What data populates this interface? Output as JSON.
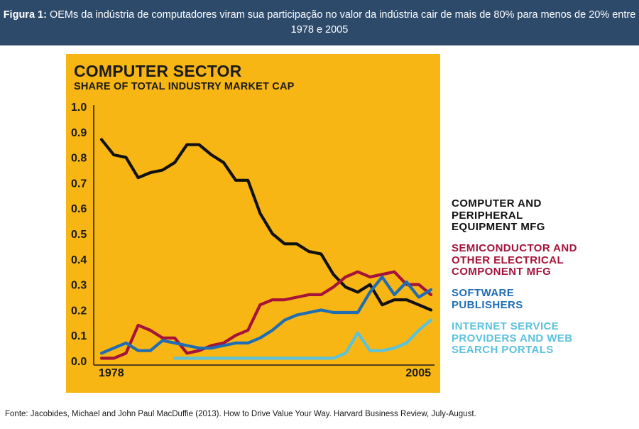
{
  "header": {
    "label": "Figura 1:",
    "text": "OEMs da indústria de computadores viram sua participação no valor da indústria cair de mais de 80% para menos de 20% entre 1978 e 2005"
  },
  "footer": {
    "text": "Fonte: Jacobides, Michael and John Paul MacDuffie (2013). How to Drive Value Your Way. Harvard Business Review, July-August."
  },
  "chart_data": {
    "type": "line",
    "title": "COMPUTER SECTOR",
    "subtitle": "SHARE OF TOTAL INDUSTRY MARKET CAP",
    "xlabel": "",
    "ylabel": "",
    "xlim": [
      1978,
      2005
    ],
    "ylim": [
      0,
      1.0
    ],
    "x_tick_labels": [
      "1978",
      "2005"
    ],
    "y_tick_labels": [
      "0.0",
      "0.1",
      "0.2",
      "0.3",
      "0.4",
      "0.5",
      "0.6",
      "0.7",
      "0.8",
      "0.9",
      "1.0"
    ],
    "x": [
      1978,
      1979,
      1980,
      1981,
      1982,
      1983,
      1984,
      1985,
      1986,
      1987,
      1988,
      1989,
      1990,
      1991,
      1992,
      1993,
      1994,
      1995,
      1996,
      1997,
      1998,
      1999,
      2000,
      2001,
      2002,
      2003,
      2004,
      2005
    ],
    "series": [
      {
        "name": "COMPUTER AND PERIPHERAL EQUIPMENT MFG",
        "color": "#111111",
        "values": [
          0.87,
          0.81,
          0.8,
          0.72,
          0.74,
          0.75,
          0.78,
          0.85,
          0.85,
          0.81,
          0.78,
          0.71,
          0.71,
          0.58,
          0.5,
          0.46,
          0.46,
          0.43,
          0.42,
          0.34,
          0.29,
          0.27,
          0.3,
          0.22,
          0.24,
          0.24,
          0.22,
          0.2
        ]
      },
      {
        "name": "SEMICONDUCTOR AND OTHER ELECTRICAL COMPONENT MFG",
        "color": "#a5123a",
        "values": [
          0.01,
          0.01,
          0.03,
          0.14,
          0.12,
          0.09,
          0.09,
          0.03,
          0.04,
          0.06,
          0.07,
          0.1,
          0.12,
          0.22,
          0.24,
          0.24,
          0.25,
          0.26,
          0.26,
          0.29,
          0.33,
          0.35,
          0.33,
          0.34,
          0.35,
          0.3,
          0.3,
          0.26
        ]
      },
      {
        "name": "SOFTWARE PUBLISHERS",
        "color": "#1f6db5",
        "values": [
          0.03,
          0.05,
          0.07,
          0.04,
          0.04,
          0.08,
          0.07,
          0.06,
          0.05,
          0.05,
          0.06,
          0.07,
          0.07,
          0.09,
          0.12,
          0.16,
          0.18,
          0.19,
          0.2,
          0.19,
          0.19,
          0.19,
          0.27,
          0.33,
          0.26,
          0.31,
          0.25,
          0.28
        ]
      },
      {
        "name": "INTERNET SERVICE PROVIDERS AND WEB SEARCH PORTALS",
        "color": "#5cc2dc",
        "values": [
          null,
          null,
          null,
          null,
          null,
          null,
          0.01,
          0.01,
          0.01,
          0.01,
          0.01,
          0.01,
          0.01,
          0.01,
          0.01,
          0.01,
          0.01,
          0.01,
          0.01,
          0.01,
          0.03,
          0.11,
          0.04,
          0.04,
          0.05,
          0.07,
          0.12,
          0.16
        ]
      }
    ]
  },
  "legend": [
    {
      "lines": [
        "COMPUTER AND",
        "PERIPHERAL",
        "EQUIPMENT MFG"
      ],
      "color": "#111111"
    },
    {
      "lines": [
        "SEMICONDUCTOR AND",
        "OTHER ELECTRICAL",
        "COMPONENT MFG"
      ],
      "color": "#a5123a"
    },
    {
      "lines": [
        "SOFTWARE",
        "PUBLISHERS"
      ],
      "color": "#1f6db5"
    },
    {
      "lines": [
        "INTERNET SERVICE",
        "PROVIDERS AND WEB",
        "SEARCH PORTALS"
      ],
      "color": "#5cc2dc"
    }
  ]
}
